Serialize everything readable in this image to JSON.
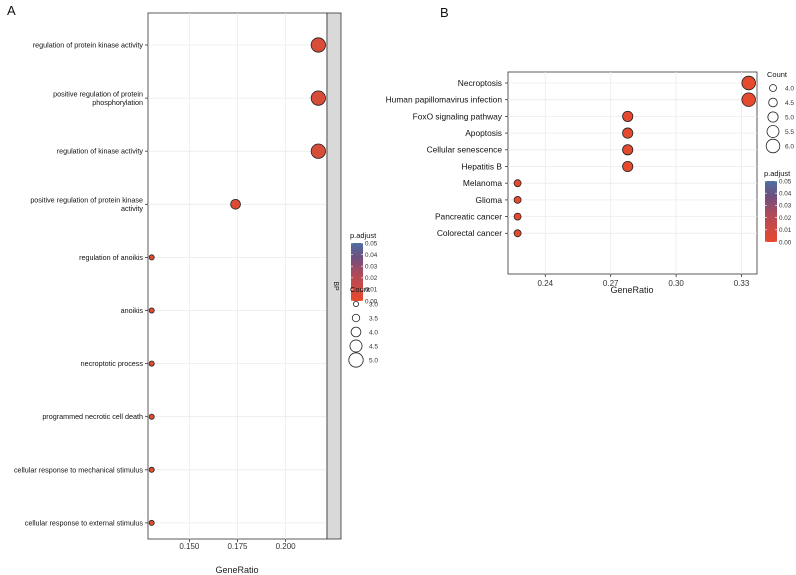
{
  "chart_data": [
    {
      "panel": "A",
      "type": "scatter",
      "facet_label": "BP",
      "xlabel": "GeneRatio",
      "ylabel": "",
      "xlim": [
        0.1285,
        0.2215
      ],
      "xticks": [
        0.15,
        0.175,
        0.2
      ],
      "xtick_labels": [
        "0.150",
        "0.175",
        "0.200"
      ],
      "terms": [
        {
          "label": [
            "regulation of protein kinase activity"
          ],
          "x": 0.217,
          "count": 5,
          "p_adjust": 0.005
        },
        {
          "label": [
            "positive regulation of protein",
            "phosphorylation"
          ],
          "x": 0.217,
          "count": 5,
          "p_adjust": 0.006
        },
        {
          "label": [
            "regulation of kinase activity"
          ],
          "x": 0.217,
          "count": 5,
          "p_adjust": 0.006
        },
        {
          "label": [
            "positive regulation of protein kinase",
            "activity"
          ],
          "x": 0.174,
          "count": 4,
          "p_adjust": 0.004
        },
        {
          "label": [
            "regulation of anoikis"
          ],
          "x": 0.1304,
          "count": 3,
          "p_adjust": 0.002
        },
        {
          "label": [
            "anoikis"
          ],
          "x": 0.1304,
          "count": 3,
          "p_adjust": 0.002
        },
        {
          "label": [
            "necroptotic process"
          ],
          "x": 0.1304,
          "count": 3,
          "p_adjust": 0.003
        },
        {
          "label": [
            "programmed necrotic cell death"
          ],
          "x": 0.1304,
          "count": 3,
          "p_adjust": 0.003
        },
        {
          "label": [
            "cellular response to mechanical stimulus"
          ],
          "x": 0.1304,
          "count": 3,
          "p_adjust": 0.003
        },
        {
          "label": [
            "cellular response to external stimulus"
          ],
          "x": 0.1304,
          "count": 3,
          "p_adjust": 0.003
        }
      ],
      "color_legend": {
        "title": "p.adjust",
        "min": 0.0,
        "max": 0.05,
        "ticks": [
          "0.05",
          "0.04",
          "0.03",
          "0.02",
          "0.01",
          "0.00"
        ]
      },
      "size_legend": {
        "title": "Count",
        "values": [
          3.0,
          3.5,
          4.0,
          4.5,
          5.0
        ],
        "labels": [
          "3.0",
          "3.5",
          "4.0",
          "4.5",
          "5.0"
        ]
      }
    },
    {
      "panel": "B",
      "type": "scatter",
      "xlabel": "GeneRatio",
      "ylabel": "",
      "xlim": [
        0.2229,
        0.3371
      ],
      "xticks": [
        0.24,
        0.27,
        0.3,
        0.33
      ],
      "xtick_labels": [
        "0.24",
        "0.27",
        "0.30",
        "0.33"
      ],
      "terms": [
        {
          "label": [
            "Necroptosis"
          ],
          "x": 0.3333,
          "count": 6,
          "p_adjust": 0.001
        },
        {
          "label": [
            "Human papillomavirus infection"
          ],
          "x": 0.3333,
          "count": 6,
          "p_adjust": 0.001
        },
        {
          "label": [
            "FoxO signaling pathway"
          ],
          "x": 0.2778,
          "count": 5,
          "p_adjust": 0.001
        },
        {
          "label": [
            "Apoptosis"
          ],
          "x": 0.2778,
          "count": 5,
          "p_adjust": 0.001
        },
        {
          "label": [
            "Cellular senescence"
          ],
          "x": 0.2778,
          "count": 5,
          "p_adjust": 0.001
        },
        {
          "label": [
            "Hepatitis B"
          ],
          "x": 0.2778,
          "count": 5,
          "p_adjust": 0.001
        },
        {
          "label": [
            "Melanoma"
          ],
          "x": 0.2273,
          "count": 4,
          "p_adjust": 0.001
        },
        {
          "label": [
            "Glioma"
          ],
          "x": 0.2273,
          "count": 4,
          "p_adjust": 0.001
        },
        {
          "label": [
            "Pancreatic cancer"
          ],
          "x": 0.2273,
          "count": 4,
          "p_adjust": 0.001
        },
        {
          "label": [
            "Colorectal cancer"
          ],
          "x": 0.2273,
          "count": 4,
          "p_adjust": 0.001
        }
      ],
      "color_legend": {
        "title": "p.adjust",
        "min": 0.0,
        "max": 0.05,
        "ticks": [
          "0.05",
          "0.04",
          "0.03",
          "0.02",
          "0.01",
          "0.00"
        ]
      },
      "size_legend": {
        "title": "Count",
        "values": [
          4.0,
          4.5,
          5.0,
          5.5,
          6.0
        ],
        "labels": [
          "4.0",
          "4.5",
          "5.0",
          "5.5",
          "6.0"
        ]
      }
    }
  ],
  "colors": {
    "low": "#e8492c",
    "high": "#4e6fa1",
    "stroke": "#222222",
    "grid": "#ebebeb",
    "strip": "#d9d9d9"
  }
}
